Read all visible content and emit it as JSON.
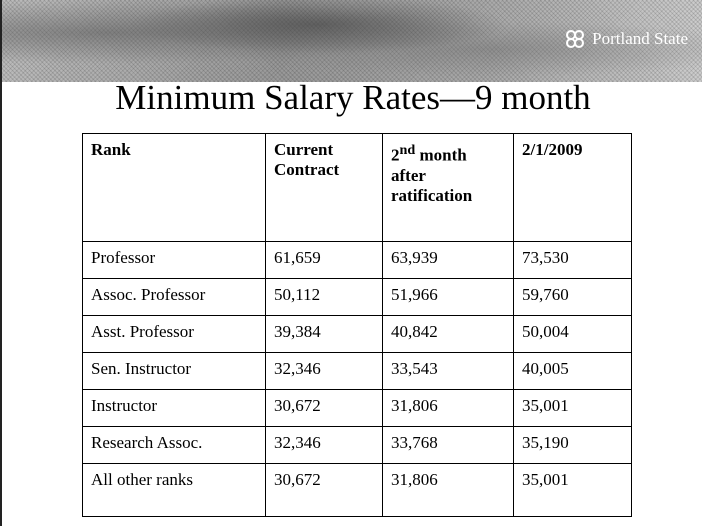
{
  "header": {
    "logo": "Portland State"
  },
  "title": "Minimum Salary Rates—9 month",
  "table": {
    "columns": [
      "Rank",
      "Current Contract",
      [
        "2",
        "nd",
        " month after ratification"
      ],
      "2/1/2009"
    ],
    "rows": [
      [
        "Professor",
        "61,659",
        "63,939",
        "73,530"
      ],
      [
        "Assoc. Professor",
        "50,112",
        "51,966",
        "59,760"
      ],
      [
        "Asst. Professor",
        "39,384",
        "40,842",
        "50,004"
      ],
      [
        "Sen. Instructor",
        "32,346",
        "33,543",
        "40,005"
      ],
      [
        "Instructor",
        "30,672",
        "31,806",
        "35,001"
      ],
      [
        "Research Assoc.",
        "32,346",
        "33,768",
        "35,190"
      ],
      [
        "All other ranks",
        "30,672",
        "31,806",
        "35,001"
      ]
    ]
  }
}
